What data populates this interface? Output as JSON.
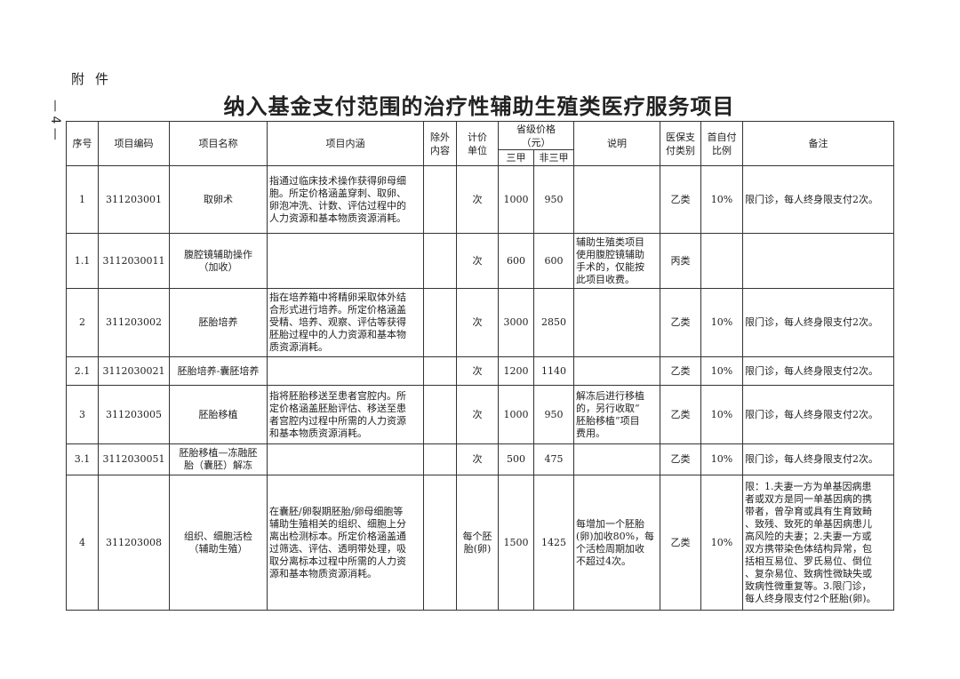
{
  "attachment_label": "附件",
  "page_number": "— 4 —",
  "title": "纳入基金支付范围的治疗性辅助生殖类医疗服务项目",
  "headers": {
    "seq": "序号",
    "code": "项目编码",
    "name": "项目名称",
    "content": "项目内涵",
    "excluded": "除外\n内容",
    "unit": "计价\n单位",
    "price": "省级价格\n（元）",
    "price_a": "三甲",
    "price_b": "非三甲",
    "note": "说明",
    "category": "医保支\n付类别",
    "ratio": "首自付\n比例",
    "remark": "备注"
  },
  "rows": [
    {
      "seq": "1",
      "code": "311203001",
      "name": "取卵术",
      "content": "指通过临床技术操作获得卵母细\n胞。所定价格涵盖穿刺、取卵、\n卵泡冲洗、计数、评估过程中的\n人力资源和基本物质资源消耗。",
      "excluded": "",
      "unit": "次",
      "price_a": "1000",
      "price_b": "950",
      "note": "",
      "category": "乙类",
      "ratio": "10%",
      "remark": "限门诊，每人终身限支付2次。"
    },
    {
      "seq": "1.1",
      "code": "3112030011",
      "name": "腹腔镜辅助操作\n（加收）",
      "content": "",
      "excluded": "",
      "unit": "次",
      "price_a": "600",
      "price_b": "600",
      "note": "辅助生殖类项目\n使用腹腔镜辅助\n手术的，仅能按\n此项目收费。",
      "category": "丙类",
      "ratio": "",
      "remark": ""
    },
    {
      "seq": "2",
      "code": "311203002",
      "name": "胚胎培养",
      "content": "指在培养箱中将精卵采取体外结\n合形式进行培养。所定价格涵盖\n受精、培养、观察、评估等获得\n胚胎过程中的人力资源和基本物\n质资源消耗。",
      "excluded": "",
      "unit": "次",
      "price_a": "3000",
      "price_b": "2850",
      "note": "",
      "category": "乙类",
      "ratio": "10%",
      "remark": "限门诊，每人终身限支付2次。"
    },
    {
      "seq": "2.1",
      "code": "3112030021",
      "name": "胚胎培养-囊胚培养",
      "content": "",
      "excluded": "",
      "unit": "次",
      "price_a": "1200",
      "price_b": "1140",
      "note": "",
      "category": "乙类",
      "ratio": "10%",
      "remark": "限门诊，每人终身限支付2次。"
    },
    {
      "seq": "3",
      "code": "311203005",
      "name": "胚胎移植",
      "content": "指将胚胎移送至患者宫腔内。所\n定价格涵盖胚胎评估、移送至患\n者宫腔内过程中所需的人力资源\n和基本物质资源消耗。",
      "excluded": "",
      "unit": "次",
      "price_a": "1000",
      "price_b": "950",
      "note": "解冻后进行移植\n的，另行收取“\n胚胎移植”项目\n费用。",
      "category": "乙类",
      "ratio": "10%",
      "remark": "限门诊，每人终身限支付2次。"
    },
    {
      "seq": "3.1",
      "code": "3112030051",
      "name": "胚胎移植—冻融胚\n胎（囊胚）解冻",
      "content": "",
      "excluded": "",
      "unit": "次",
      "price_a": "500",
      "price_b": "475",
      "note": "",
      "category": "乙类",
      "ratio": "10%",
      "remark": "限门诊，每人终身限支付2次。"
    },
    {
      "seq": "4",
      "code": "311203008",
      "name": "组织、细胞活检\n（辅助生殖）",
      "content": "在囊胚/卵裂期胚胎/卵母细胞等\n辅助生殖相关的组织、细胞上分\n离出检测标本。所定价格涵盖通\n过筛选、评估、透明带处理，吸\n取分离标本过程中所需的人力资\n源和基本物质资源消耗。",
      "excluded": "",
      "unit": "每个胚\n胎(卵)",
      "price_a": "1500",
      "price_b": "1425",
      "note": "每增加一个胚胎\n(卵)加收80%，每\n个活检周期加收\n不超过4次。",
      "category": "乙类",
      "ratio": "10%",
      "remark": "限：1.夫妻一方为单基因病患\n者或双方是同一单基因病的携\n带者，曾孕育或具有生育致畸\n、致残、致死的单基因病患儿\n高风险的夫妻；2.夫妻一方或\n双方携带染色体结构异常，包\n括相互易位、罗氏易位、倒位\n、复杂易位、致病性微缺失或\n致病性微重复等。3.限门诊，\n每人终身限支付2个胚胎(卵)。"
    }
  ]
}
